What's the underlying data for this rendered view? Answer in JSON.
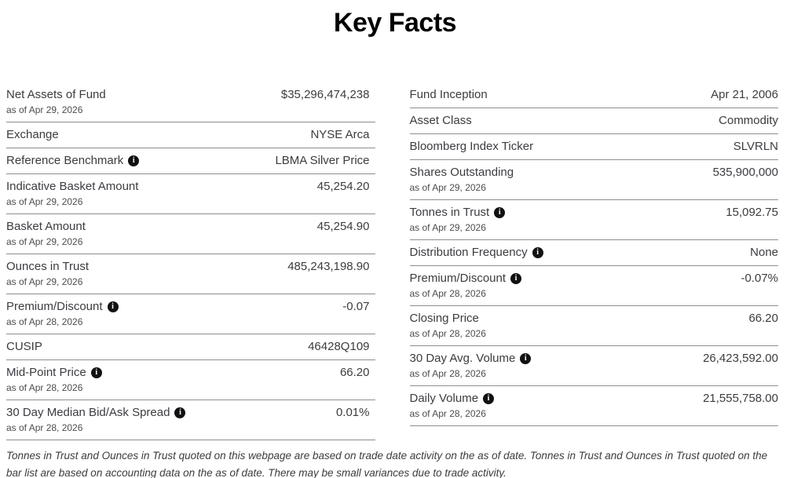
{
  "page": {
    "title": "Key Facts"
  },
  "left_rows": [
    {
      "label": "Net Assets of Fund",
      "as_of": "as of Apr 29, 2026",
      "value": "$35,296,474,238",
      "info": false
    },
    {
      "label": "Exchange",
      "value": "NYSE Arca",
      "info": false
    },
    {
      "label": "Reference Benchmark",
      "info": true,
      "value": "LBMA Silver Price"
    },
    {
      "label": "Indicative Basket Amount",
      "as_of": "as of Apr 29, 2026",
      "value": "45,254.20",
      "info": false
    },
    {
      "label": "Basket Amount",
      "as_of": "as of Apr 29, 2026",
      "value": "45,254.90",
      "info": false
    },
    {
      "label": "Ounces in Trust",
      "as_of": "as of Apr 29, 2026",
      "value": "485,243,198.90",
      "info": false
    },
    {
      "label": "Premium/Discount",
      "info": true,
      "as_of": "as of Apr 28, 2026",
      "value": "-0.07"
    },
    {
      "label": "CUSIP",
      "value": "46428Q109",
      "info": false
    },
    {
      "label": "Mid-Point Price",
      "info": true,
      "as_of": "as of Apr 28, 2026",
      "value": "66.20"
    },
    {
      "label": "30 Day Median Bid/Ask Spread",
      "info": true,
      "as_of": "as of Apr 28, 2026",
      "value": "0.01%"
    }
  ],
  "right_rows": [
    {
      "label": "Fund Inception",
      "value": "Apr 21, 2006",
      "info": false
    },
    {
      "label": "Asset Class",
      "value": "Commodity",
      "info": false
    },
    {
      "label": "Bloomberg Index Ticker",
      "value": "SLVRLN",
      "info": false
    },
    {
      "label": "Shares Outstanding",
      "as_of": "as of Apr 29, 2026",
      "value": "535,900,000",
      "info": false
    },
    {
      "label": "Tonnes in Trust",
      "info": true,
      "as_of": "as of Apr 29, 2026",
      "value": "15,092.75"
    },
    {
      "label": "Distribution Frequency",
      "info": true,
      "value": "None"
    },
    {
      "label": "Premium/Discount",
      "info": true,
      "as_of": "as of Apr 28, 2026",
      "value": "-0.07%"
    },
    {
      "label": "Closing Price",
      "as_of": "as of Apr 28, 2026",
      "value": "66.20",
      "info": false
    },
    {
      "label": "30 Day Avg. Volume",
      "info": true,
      "as_of": "as of Apr 28, 2026",
      "value": "26,423,592.00"
    },
    {
      "label": "Daily Volume",
      "info": true,
      "as_of": "as of Apr 28, 2026",
      "value": "21,555,758.00"
    }
  ],
  "footnote": "Tonnes in Trust and Ounces in Trust quoted on this webpage are based on trade date activity on the as of date. Tonnes in Trust and Ounces in Trust quoted on the bar list are based on accounting data on the as of date. There may be small variances due to trade activity.",
  "icons": {
    "info_glyph": "i"
  },
  "colors": {
    "text": "#3c3c41",
    "subtext": "#4c4c50",
    "line": "#8e8e8e",
    "title": "#000000",
    "icon_bg": "#111111",
    "icon_fg": "#ffffff"
  }
}
